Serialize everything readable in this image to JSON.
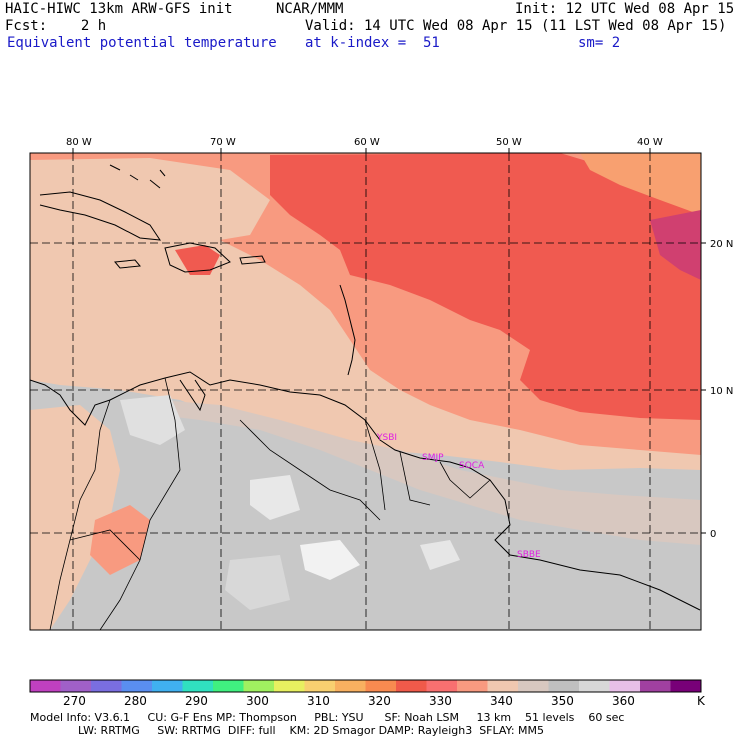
{
  "header": {
    "model": "HAIC-HIWC 13km ARW-GFS init",
    "org": "NCAR/MMM",
    "init": "Init: 12 UTC Wed 08 Apr 15",
    "fcst": "Fcst:    2 h",
    "valid": "Valid: 14 UTC Wed 08 Apr 15 (11 LST Wed 08 Apr 15)",
    "field": "Equivalent potential temperature",
    "level": "at k-index =  51",
    "smooth": "sm= 2"
  },
  "axes": {
    "lon_labels": [
      "80 W",
      "70 W",
      "60 W",
      "50 W",
      "40 W"
    ],
    "lat_labels": [
      "20 N",
      "10 N",
      "0"
    ]
  },
  "stations": [
    "YSBI",
    "SMJP",
    "SOCA",
    "SBBE"
  ],
  "colorbar": {
    "colors": [
      "#c040c0",
      "#a060c8",
      "#7a6ee0",
      "#5a8ef0",
      "#40b0f0",
      "#30e0c0",
      "#40f080",
      "#a0f060",
      "#e8f060",
      "#f8d070",
      "#f8b060",
      "#f88a50",
      "#f05a4a",
      "#f87070",
      "#f89a80",
      "#f0c8b0",
      "#d8c8c0",
      "#c0c0c0",
      "#d8d8d8",
      "#e8c0e8",
      "#a040a0",
      "#780078"
    ],
    "labels": [
      "270",
      "280",
      "290",
      "300",
      "310",
      "320",
      "330",
      "340",
      "350",
      "360"
    ],
    "unit": "K"
  },
  "info": {
    "line1": "Model Info: V3.6.1     CU: G-F Ens MP: Thompson     PBL: YSU      SF: Noah LSM     13 km    51 levels    60 sec",
    "line2": "LW: RRTMG     SW: RRTMG  DIFF: full    KM: 2D Smagor DAMP: Rayleigh3  SFLAY: MM5"
  },
  "palette": {
    "ocean_red": "#f05a50",
    "salmon": "#f89a80",
    "peach": "#f0c8b0",
    "tan": "#d8c8c0",
    "grey": "#c8c8c8",
    "light_grey": "#e0e0e0",
    "white": "#f8f8f8",
    "orange": "#f8a070",
    "magenta": "#d04070"
  }
}
